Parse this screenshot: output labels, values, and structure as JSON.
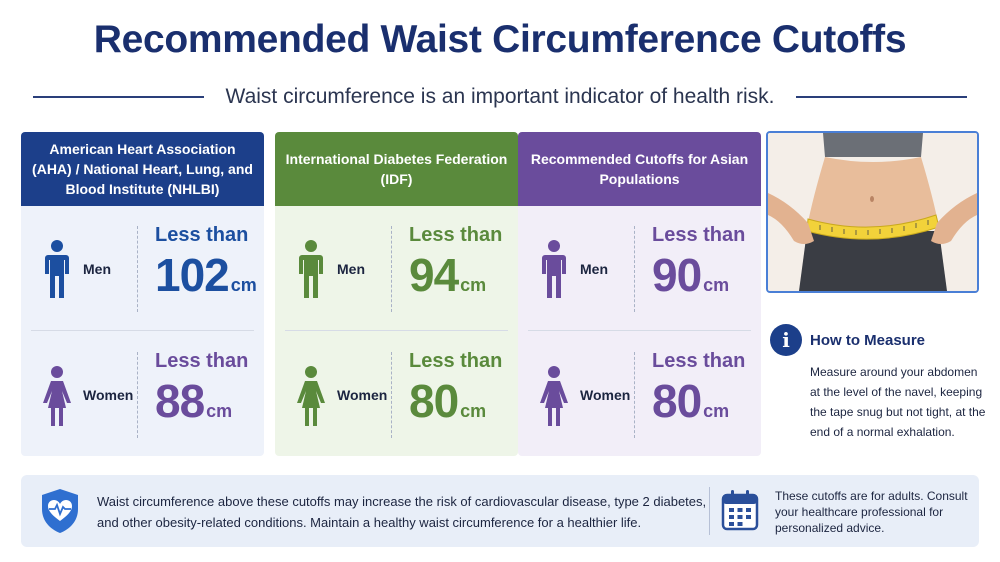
{
  "title": "Recommended Waist Circumference Cutoffs",
  "subtitle": "Waist circumference is an important indicator of health risk.",
  "cards": [
    {
      "header": "American Heart Association (AHA) / National Heart, Lung, and Blood Institute (NHLBI)",
      "color": "#1c3f8a",
      "men": {
        "label": "Men",
        "prefix": "Less than",
        "value": "102",
        "unit": "cm"
      },
      "women": {
        "label": "Women",
        "prefix": "Less than",
        "value": "88",
        "unit": "cm"
      }
    },
    {
      "header": "International Diabetes Federation (IDF)",
      "color": "#5a8a3c",
      "men": {
        "label": "Men",
        "prefix": "Less than",
        "value": "94",
        "unit": "cm"
      },
      "women": {
        "label": "Women",
        "prefix": "Less than",
        "value": "80",
        "unit": "cm"
      }
    },
    {
      "header": "Recommended Cutoffs for Asian Populations",
      "color": "#6a4c9c",
      "men": {
        "label": "Men",
        "prefix": "Less than",
        "value": "90",
        "unit": "cm"
      },
      "women": {
        "label": "Women",
        "prefix": "Less than",
        "value": "80",
        "unit": "cm"
      }
    }
  ],
  "how_to": {
    "icon": "info-icon",
    "icon_glyph": "i",
    "heading": "How to Measure",
    "text": "Measure around your abdomen at the level of the navel, keeping the tape snug but not tight, at the end of a normal exhalation."
  },
  "banner": {
    "icon": "heart-shield-icon",
    "message": "Waist circumference above these cutoffs may increase the risk of cardiovascular disease, type 2 diabetes, and other obesity-related conditions. Maintain a healthy waist circumference for a healthier life.",
    "note_icon": "calendar-icon",
    "note": "These cutoffs are for adults. Consult your healthcare professional for personalized advice."
  },
  "colors": {
    "aha": "#1c3f8a",
    "aha_text": "#1c4fa0",
    "aha_women": "#6a4c9c",
    "idf": "#5a8a3c",
    "asia": "#6a4c9c",
    "title": "#1a2f6e"
  }
}
